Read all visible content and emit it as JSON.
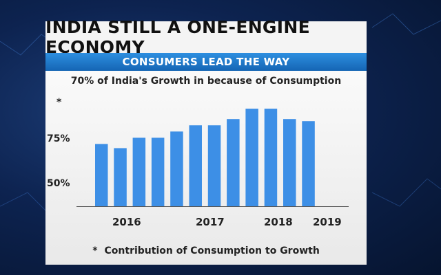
{
  "header": {
    "title": "INDIA STILL A ONE-ENGINE ECONOMY",
    "subtitle": "CONSUMERS LEAD THE WAY"
  },
  "colors": {
    "bar": "#3d8fe6",
    "subtitle_bar": "#1e78d2",
    "background": "#0d2350"
  },
  "chart_data": {
    "type": "bar",
    "title": "70% of India's Growth in because of Consumption",
    "y_tick_labels": [
      "*",
      "75%",
      "50%"
    ],
    "x_tick_labels": [
      "2016",
      "2017",
      "2018",
      "2019"
    ],
    "values": [
      74,
      72,
      77,
      77,
      80,
      83,
      83,
      86,
      91,
      91,
      86,
      85
    ],
    "ylim": [
      44,
      96
    ],
    "footnote_marker": "*",
    "footnote": "Contribution of Consumption to Growth"
  }
}
